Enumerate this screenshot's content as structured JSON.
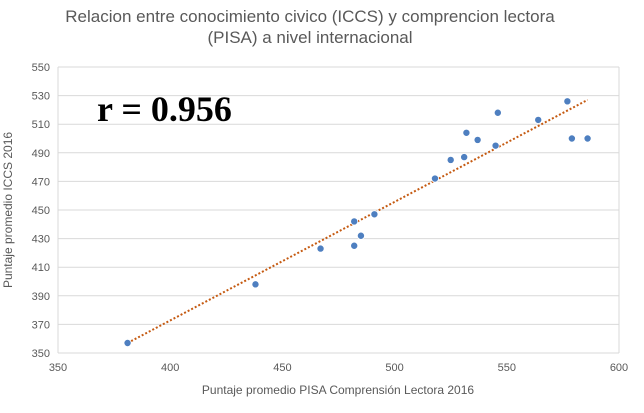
{
  "chart_data": {
    "type": "scatter",
    "title_lines": [
      "Relacion entre conocimiento civico (ICCS) y comprencion lectora",
      "(PISA) a nivel internacional"
    ],
    "xlabel": "Puntaje promedio PISA Comprensión Lectora 2016",
    "ylabel": "Puntaje promedio ICCS 2016",
    "xlim": [
      350,
      600
    ],
    "ylim": [
      350,
      550
    ],
    "xticks": [
      "350",
      "400",
      "450",
      "500",
      "550",
      "600"
    ],
    "yticks": [
      "350",
      "370",
      "390",
      "410",
      "430",
      "450",
      "470",
      "490",
      "510",
      "530",
      "550"
    ],
    "grid": "horizontal",
    "annotation": "r = 0.956",
    "colors": {
      "marker": "#4e7fc0",
      "trendline": "#c55a11",
      "grid": "#d9d9d9"
    },
    "points": [
      {
        "x": 381,
        "y": 357
      },
      {
        "x": 438,
        "y": 398
      },
      {
        "x": 467,
        "y": 423
      },
      {
        "x": 482,
        "y": 425
      },
      {
        "x": 482,
        "y": 442
      },
      {
        "x": 485,
        "y": 432
      },
      {
        "x": 491,
        "y": 447
      },
      {
        "x": 518,
        "y": 472
      },
      {
        "x": 525,
        "y": 485
      },
      {
        "x": 531,
        "y": 487
      },
      {
        "x": 532,
        "y": 504
      },
      {
        "x": 537,
        "y": 499
      },
      {
        "x": 545,
        "y": 495
      },
      {
        "x": 546,
        "y": 518
      },
      {
        "x": 564,
        "y": 513
      },
      {
        "x": 577,
        "y": 526
      },
      {
        "x": 579,
        "y": 500
      },
      {
        "x": 586,
        "y": 500
      }
    ],
    "trendline": {
      "x1": 381,
      "y1": 357,
      "x2": 586,
      "y2": 527
    }
  }
}
